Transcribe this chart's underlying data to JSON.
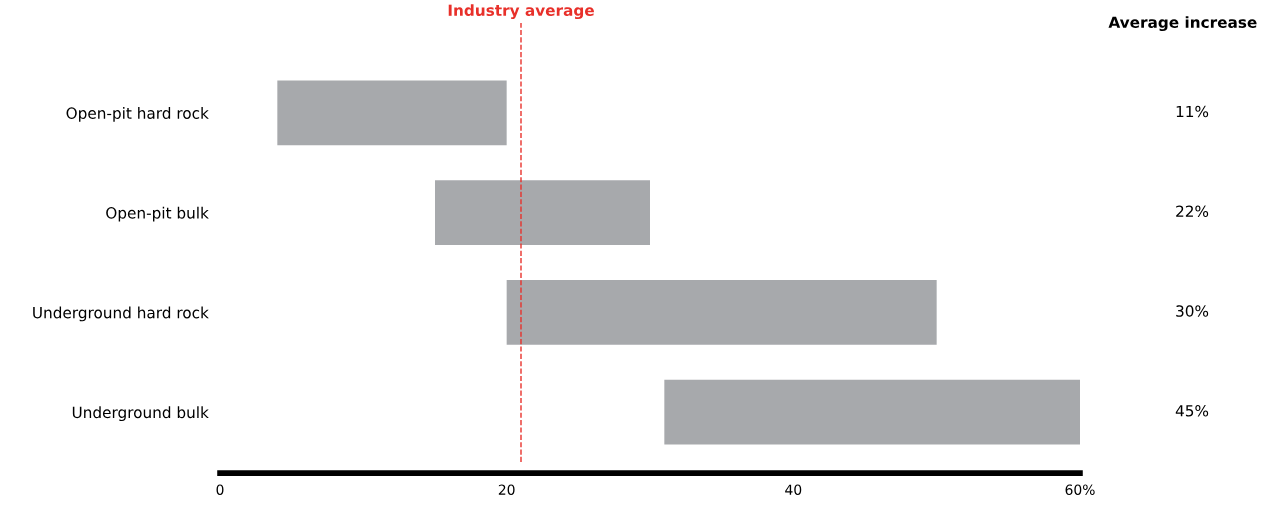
{
  "chart_data": {
    "type": "bar",
    "orientation": "horizontal",
    "categories": [
      "Open-pit hard rock",
      "Open-pit bulk",
      "Underground hard rock",
      "Underground bulk"
    ],
    "values": [
      16,
      15,
      30,
      29
    ],
    "base": [
      4,
      15,
      20,
      31
    ],
    "color": "#a7a9ac",
    "xlim": [
      0,
      60
    ],
    "xticks": [
      0,
      20,
      40,
      {
        "value": 60,
        "label": "60%"
      }
    ],
    "ref_lines": [
      {
        "axis": "x",
        "value": 21,
        "label": "Industry average",
        "color": "#e8302a",
        "line_style": "dashed"
      }
    ],
    "annotations": [
      "Average increase",
      "11%",
      "22%",
      "30%",
      "45%"
    ],
    "grid": false
  }
}
